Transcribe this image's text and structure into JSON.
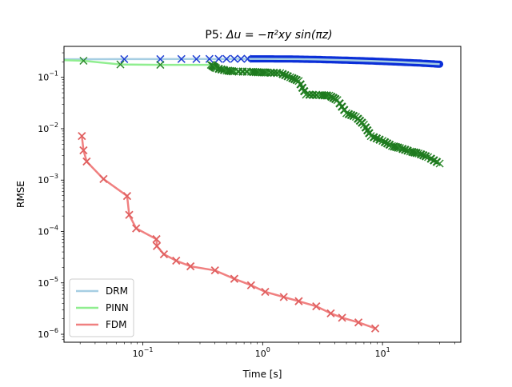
{
  "chart_data": {
    "type": "line",
    "title_prefix": "P5: ",
    "title_math": "Δu = −π²xy sin(πz)",
    "xlabel": "Time [s]",
    "ylabel": "RMSE",
    "x_scale": "log",
    "y_scale": "log",
    "xlim": [
      0.022,
      45
    ],
    "ylim": [
      7e-07,
      0.4
    ],
    "x_ticks": [
      {
        "value": 0.1,
        "base": "10",
        "exp": "−1"
      },
      {
        "value": 1,
        "base": "10",
        "exp": "0"
      },
      {
        "value": 10,
        "base": "10",
        "exp": "1"
      }
    ],
    "y_ticks": [
      {
        "value": 1e-06,
        "base": "10",
        "exp": "−6"
      },
      {
        "value": 1e-05,
        "base": "10",
        "exp": "−5"
      },
      {
        "value": 0.0001,
        "base": "10",
        "exp": "−4"
      },
      {
        "value": 0.001,
        "base": "10",
        "exp": "−3"
      },
      {
        "value": 0.01,
        "base": "10",
        "exp": "−2"
      },
      {
        "value": 0.1,
        "base": "10",
        "exp": "−1"
      }
    ],
    "legend_position": "lower-left",
    "series": [
      {
        "name": "DRM",
        "line_color": "#a6cee3",
        "marker_color": "#1f3fd4",
        "band_color": "#0b2fd8",
        "x": [
          0.022,
          0.07,
          0.14,
          0.21,
          0.28,
          0.36,
          0.43,
          0.5,
          0.58,
          0.66,
          0.75,
          0.85,
          1.0,
          1.4,
          2.0,
          3.0,
          5.0,
          8.0,
          12.0,
          20.0,
          30.0
        ],
        "y": [
          0.225,
          0.226,
          0.226,
          0.227,
          0.227,
          0.228,
          0.228,
          0.228,
          0.229,
          0.229,
          0.229,
          0.229,
          0.229,
          0.228,
          0.226,
          0.222,
          0.215,
          0.208,
          0.2,
          0.19,
          0.18
        ],
        "band_start_x": 0.8
      },
      {
        "name": "PINN",
        "line_color": "#90ee90",
        "marker_color": "#2e8b2e",
        "x": [
          0.022,
          0.032,
          0.065,
          0.14,
          0.37,
          0.41,
          0.5,
          0.58,
          0.8,
          0.95,
          1.1,
          1.4,
          1.7,
          2.0,
          2.3,
          3.0,
          3.6,
          4.2,
          5.0,
          6.0,
          7.0,
          8.0,
          10.0,
          12.0,
          14.0,
          17.0,
          20.0,
          24.0,
          30.0
        ],
        "y": [
          0.215,
          0.21,
          0.178,
          0.175,
          0.175,
          0.15,
          0.135,
          0.13,
          0.128,
          0.125,
          0.124,
          0.121,
          0.1,
          0.085,
          0.046,
          0.045,
          0.044,
          0.036,
          0.02,
          0.017,
          0.012,
          0.0072,
          0.0058,
          0.0046,
          0.0042,
          0.0036,
          0.0033,
          0.0028,
          0.0021
        ],
        "marker_x": [
          0.032,
          0.065,
          0.14,
          0.37,
          0.41,
          0.5,
          0.58,
          0.8,
          0.95,
          1.1,
          1.4,
          1.7,
          2.0,
          2.3,
          3.0,
          3.6,
          4.2,
          5.0,
          6.0,
          7.0,
          8.0,
          10.0,
          12.0,
          14.0,
          17.0,
          20.0,
          24.0,
          30.0
        ],
        "marker_y": [
          0.21,
          0.178,
          0.175,
          0.175,
          0.15,
          0.135,
          0.13,
          0.128,
          0.125,
          0.124,
          0.121,
          0.1,
          0.085,
          0.046,
          0.045,
          0.044,
          0.036,
          0.02,
          0.017,
          0.012,
          0.0072,
          0.0058,
          0.0046,
          0.0042,
          0.0036,
          0.0033,
          0.0028,
          0.0021
        ]
      },
      {
        "name": "FDM",
        "line_color": "#f08080",
        "marker_color": "#e06060",
        "x": [
          0.031,
          0.032,
          0.034,
          0.047,
          0.074,
          0.077,
          0.088,
          0.13,
          0.131,
          0.15,
          0.19,
          0.25,
          0.4,
          0.58,
          0.8,
          1.05,
          1.5,
          2.0,
          2.8,
          3.7,
          4.6,
          6.3,
          8.7
        ],
        "y": [
          0.0072,
          0.0038,
          0.0023,
          0.00105,
          0.00049,
          0.00021,
          0.000115,
          7.1e-05,
          5.2e-05,
          3.6e-05,
          2.7e-05,
          2.1e-05,
          1.75e-05,
          1.2e-05,
          9e-06,
          6.7e-06,
          5.3e-06,
          4.4e-06,
          3.5e-06,
          2.55e-06,
          2.1e-06,
          1.7e-06,
          1.3e-06
        ]
      }
    ]
  }
}
